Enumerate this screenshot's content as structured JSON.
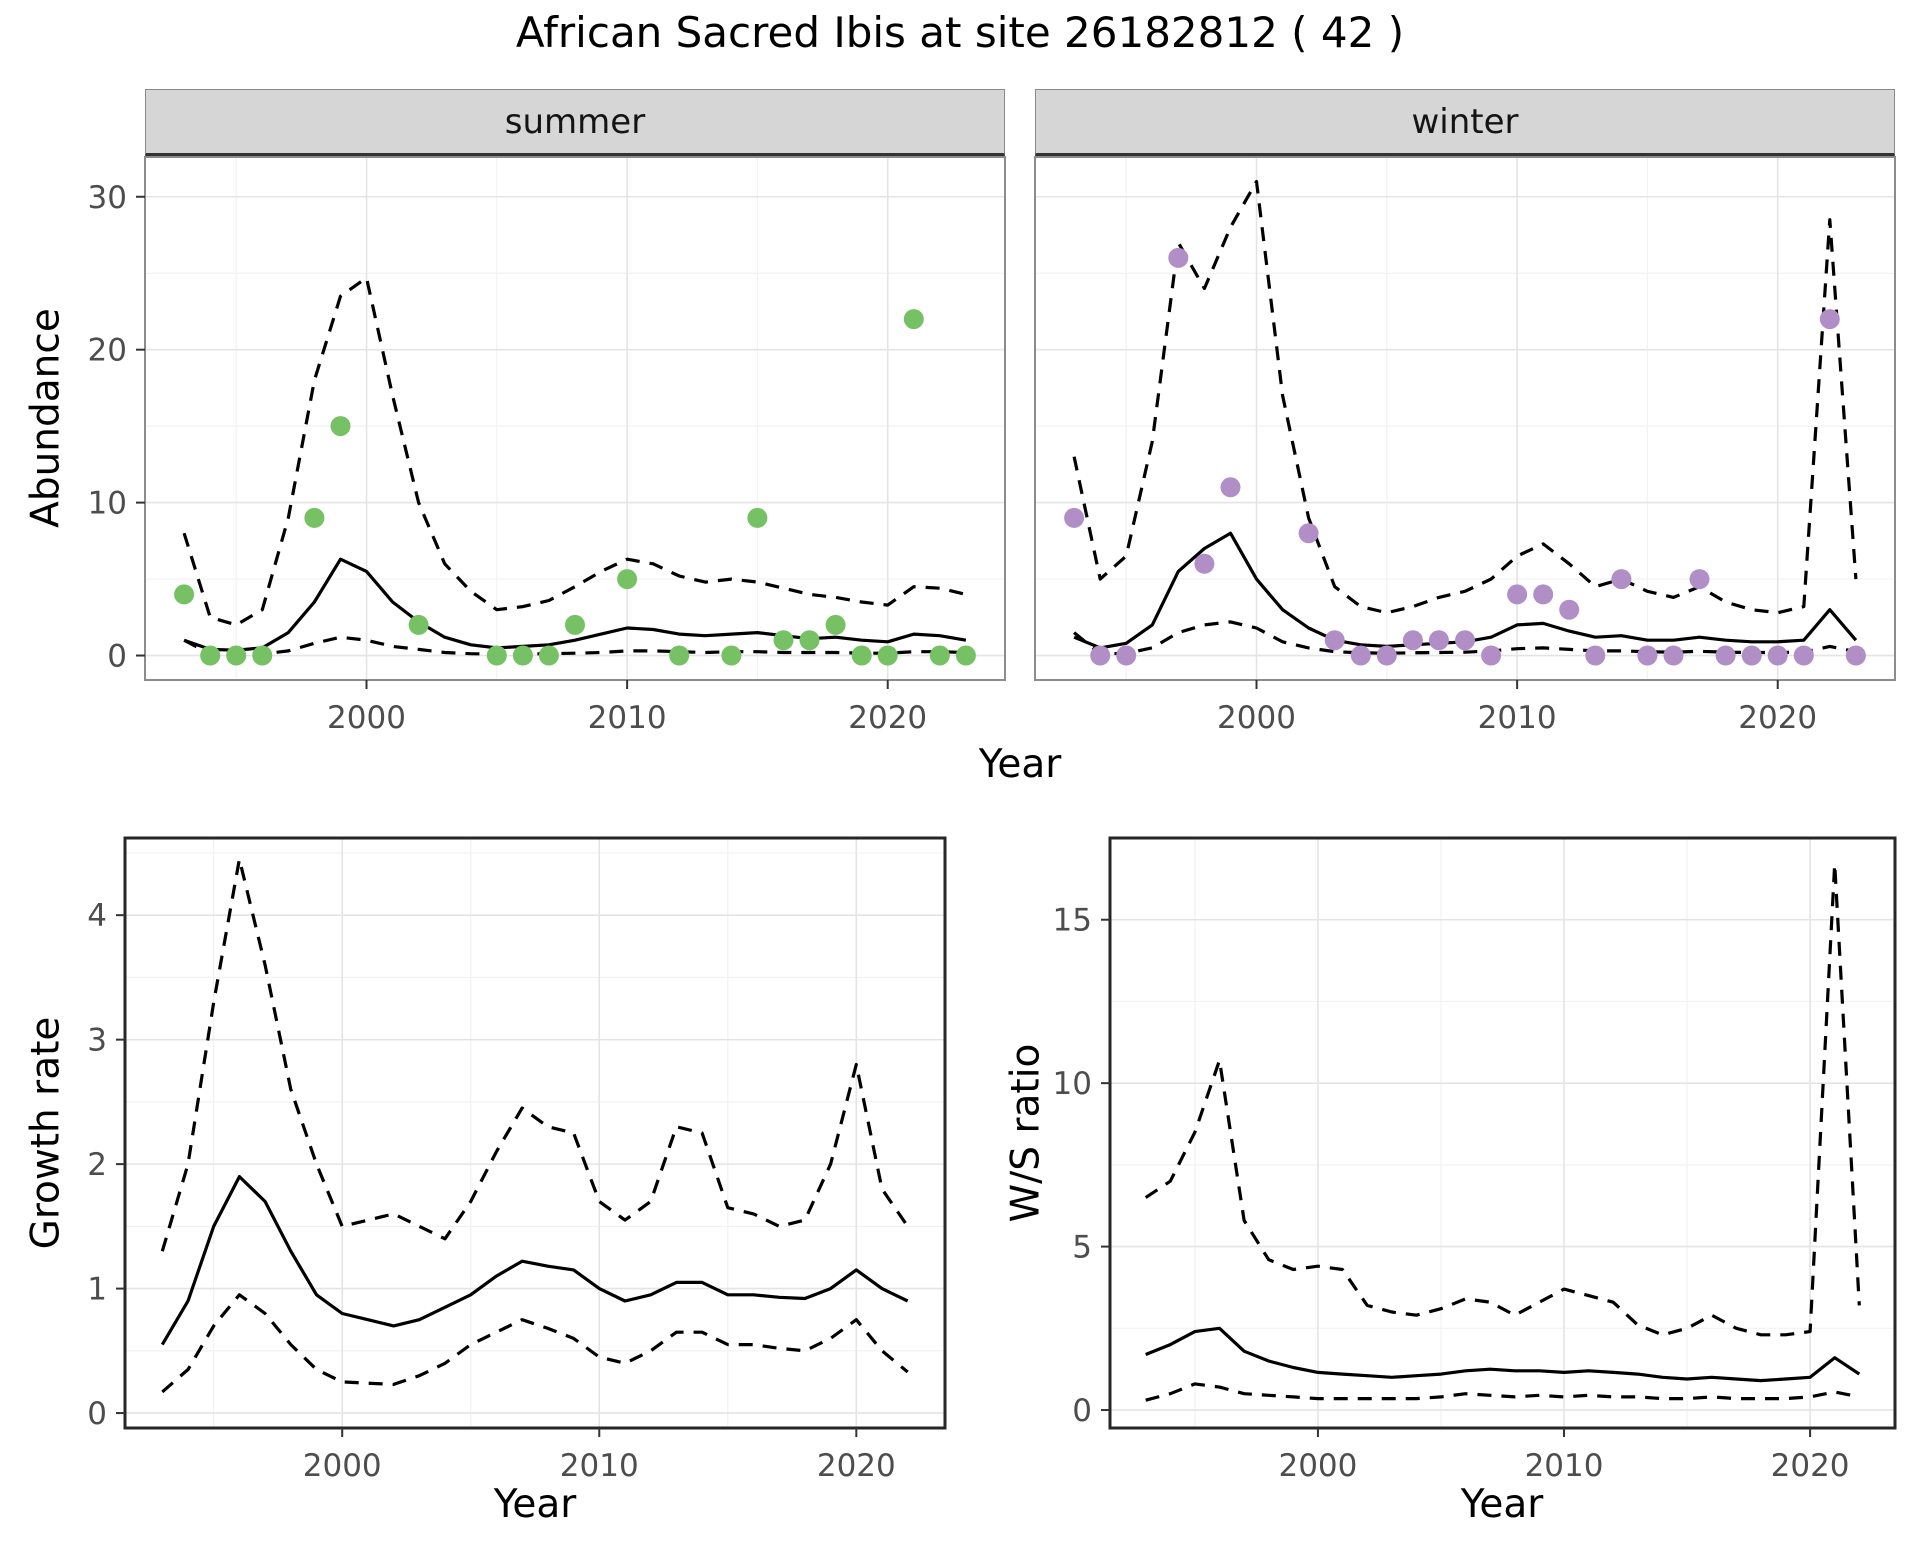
{
  "title": "African Sacred Ibis at site 26182812 ( 42 )",
  "chart_data": [
    {
      "id": "abundance",
      "type": "line",
      "xlabel": "Year",
      "ylabel": "Abundance",
      "xlim": [
        1991.5,
        2024.5
      ],
      "ylim": [
        -1.6,
        32.6
      ],
      "xticks": [
        2000,
        2010,
        2020
      ],
      "yticks": [
        0,
        10,
        20,
        30
      ],
      "x_minor": [
        1995,
        2005,
        2015
      ],
      "y_minor": [
        5,
        15,
        25
      ],
      "line_color": "#000000",
      "years": [
        1993,
        1994,
        1995,
        1996,
        1997,
        1998,
        1999,
        2000,
        2001,
        2002,
        2003,
        2004,
        2005,
        2006,
        2007,
        2008,
        2009,
        2010,
        2011,
        2012,
        2013,
        2014,
        2015,
        2016,
        2017,
        2018,
        2019,
        2020,
        2021,
        2022,
        2023
      ],
      "facets": [
        {
          "label": "summer",
          "point_color": "#76c163",
          "fit": [
            1.0,
            0.4,
            0.35,
            0.5,
            1.5,
            3.5,
            6.3,
            5.5,
            3.5,
            2.2,
            1.2,
            0.7,
            0.5,
            0.6,
            0.7,
            1.0,
            1.4,
            1.8,
            1.7,
            1.4,
            1.3,
            1.4,
            1.5,
            1.3,
            1.1,
            1.2,
            1.0,
            0.9,
            1.4,
            1.3,
            1.0
          ],
          "upper": [
            8.0,
            2.5,
            2.0,
            3.0,
            9.0,
            18.0,
            23.5,
            24.7,
            17.0,
            10.0,
            6.0,
            4.2,
            3.0,
            3.2,
            3.6,
            4.5,
            5.5,
            6.3,
            6.0,
            5.2,
            4.8,
            5.0,
            4.8,
            4.4,
            4.0,
            3.8,
            3.5,
            3.3,
            4.5,
            4.4,
            4.0
          ],
          "lower": [
            1.0,
            0.1,
            0.1,
            0.1,
            0.3,
            0.8,
            1.2,
            1.0,
            0.6,
            0.4,
            0.2,
            0.12,
            0.1,
            0.1,
            0.12,
            0.15,
            0.2,
            0.3,
            0.3,
            0.25,
            0.2,
            0.25,
            0.25,
            0.2,
            0.2,
            0.2,
            0.15,
            0.15,
            0.25,
            0.25,
            0.2
          ],
          "observed": {
            "x": [
              1993,
              1994,
              1995,
              1996,
              1998,
              1999,
              2002,
              2005,
              2006,
              2007,
              2008,
              2010,
              2012,
              2014,
              2015,
              2016,
              2017,
              2018,
              2019,
              2020,
              2021,
              2022,
              2023
            ],
            "y": [
              4,
              0,
              0,
              0,
              9,
              15,
              2,
              0,
              0,
              0,
              2,
              5,
              0,
              0,
              9,
              1,
              1,
              2,
              0,
              0,
              22,
              0,
              0
            ]
          }
        },
        {
          "label": "winter",
          "point_color": "#b18fc6",
          "fit": [
            1.2,
            0.5,
            0.8,
            2.0,
            5.5,
            7.0,
            8.0,
            5.0,
            3.0,
            1.8,
            1.0,
            0.7,
            0.6,
            0.7,
            0.8,
            0.9,
            1.2,
            2.0,
            2.1,
            1.6,
            1.2,
            1.3,
            1.0,
            1.0,
            1.2,
            1.0,
            0.9,
            0.9,
            1.0,
            3.0,
            1.0
          ],
          "upper": [
            13.0,
            5.0,
            6.5,
            14.0,
            27.0,
            24.0,
            28.0,
            31.0,
            17.0,
            9.0,
            4.5,
            3.2,
            2.8,
            3.2,
            3.8,
            4.2,
            5.0,
            6.5,
            7.3,
            6.0,
            4.5,
            5.0,
            4.2,
            3.8,
            4.5,
            3.5,
            3.0,
            2.8,
            3.2,
            28.5,
            5.0
          ],
          "lower": [
            1.5,
            0.1,
            0.15,
            0.5,
            1.5,
            2.0,
            2.2,
            1.8,
            0.9,
            0.5,
            0.25,
            0.18,
            0.15,
            0.18,
            0.2,
            0.22,
            0.3,
            0.45,
            0.5,
            0.4,
            0.3,
            0.3,
            0.25,
            0.22,
            0.28,
            0.22,
            0.2,
            0.2,
            0.22,
            0.6,
            0.25
          ],
          "observed": {
            "x": [
              1993,
              1994,
              1995,
              1997,
              1998,
              1999,
              2002,
              2003,
              2004,
              2005,
              2006,
              2007,
              2008,
              2009,
              2010,
              2011,
              2012,
              2013,
              2014,
              2015,
              2016,
              2017,
              2018,
              2019,
              2020,
              2021,
              2022,
              2023
            ],
            "y": [
              9,
              0,
              0,
              26,
              6,
              11,
              8,
              1,
              0,
              0,
              1,
              1,
              1,
              0,
              4,
              4,
              3,
              0,
              5,
              0,
              0,
              5,
              0,
              0,
              0,
              0,
              22,
              0
            ]
          }
        }
      ]
    },
    {
      "id": "growth_rate",
      "type": "line",
      "xlabel": "Year",
      "ylabel": "Growth rate",
      "xlim": [
        1991.55,
        2023.45
      ],
      "ylim": [
        -0.12,
        4.62
      ],
      "xticks": [
        2000,
        2010,
        2020
      ],
      "yticks": [
        0,
        1,
        2,
        3,
        4
      ],
      "x_minor": [
        1995,
        2005,
        2015
      ],
      "y_minor": [
        0.5,
        1.5,
        2.5,
        3.5,
        4.5
      ],
      "line_color": "#000000",
      "years": [
        1993,
        1994,
        1995,
        1996,
        1997,
        1998,
        1999,
        2000,
        2001,
        2002,
        2003,
        2004,
        2005,
        2006,
        2007,
        2008,
        2009,
        2010,
        2011,
        2012,
        2013,
        2014,
        2015,
        2016,
        2017,
        2018,
        2019,
        2020,
        2021,
        2022
      ],
      "fit": [
        0.55,
        0.9,
        1.5,
        1.9,
        1.7,
        1.3,
        0.95,
        0.8,
        0.75,
        0.7,
        0.75,
        0.85,
        0.95,
        1.1,
        1.22,
        1.18,
        1.15,
        1.0,
        0.9,
        0.95,
        1.05,
        1.05,
        0.95,
        0.95,
        0.93,
        0.92,
        1.0,
        1.15,
        1.0,
        0.9
      ],
      "upper": [
        1.3,
        2.0,
        3.3,
        4.45,
        3.6,
        2.6,
        2.0,
        1.5,
        1.55,
        1.6,
        1.5,
        1.4,
        1.7,
        2.1,
        2.45,
        2.3,
        2.25,
        1.7,
        1.55,
        1.7,
        2.3,
        2.25,
        1.65,
        1.6,
        1.5,
        1.55,
        2.0,
        2.8,
        1.8,
        1.5
      ],
      "lower": [
        0.17,
        0.35,
        0.7,
        0.95,
        0.8,
        0.55,
        0.35,
        0.25,
        0.24,
        0.23,
        0.3,
        0.4,
        0.55,
        0.65,
        0.75,
        0.68,
        0.6,
        0.45,
        0.4,
        0.5,
        0.65,
        0.65,
        0.55,
        0.55,
        0.52,
        0.5,
        0.6,
        0.75,
        0.5,
        0.33
      ]
    },
    {
      "id": "ws_ratio",
      "type": "line",
      "xlabel": "Year",
      "ylabel": "W/S ratio",
      "xlim": [
        1991.55,
        2023.45
      ],
      "ylim": [
        -0.55,
        17.5
      ],
      "xticks": [
        2000,
        2010,
        2020
      ],
      "yticks": [
        0,
        5,
        10,
        15
      ],
      "x_minor": [
        1995,
        2005,
        2015
      ],
      "y_minor": [
        2.5,
        7.5,
        12.5
      ],
      "line_color": "#000000",
      "years": [
        1993,
        1994,
        1995,
        1996,
        1997,
        1998,
        1999,
        2000,
        2001,
        2002,
        2003,
        2004,
        2005,
        2006,
        2007,
        2008,
        2009,
        2010,
        2011,
        2012,
        2013,
        2014,
        2015,
        2016,
        2017,
        2018,
        2019,
        2020,
        2021,
        2022
      ],
      "fit": [
        1.7,
        2.0,
        2.4,
        2.5,
        1.8,
        1.5,
        1.3,
        1.15,
        1.1,
        1.05,
        1.0,
        1.05,
        1.1,
        1.2,
        1.25,
        1.2,
        1.2,
        1.15,
        1.2,
        1.15,
        1.1,
        1.0,
        0.95,
        1.0,
        0.95,
        0.9,
        0.95,
        1.0,
        1.6,
        1.1
      ],
      "upper": [
        6.5,
        7.0,
        8.5,
        10.7,
        5.8,
        4.6,
        4.3,
        4.4,
        4.3,
        3.2,
        3.0,
        2.9,
        3.1,
        3.4,
        3.3,
        2.9,
        3.3,
        3.7,
        3.5,
        3.3,
        2.6,
        2.3,
        2.5,
        2.9,
        2.5,
        2.3,
        2.3,
        2.4,
        16.7,
        3.2
      ],
      "lower": [
        0.3,
        0.5,
        0.8,
        0.7,
        0.5,
        0.45,
        0.4,
        0.35,
        0.35,
        0.35,
        0.35,
        0.35,
        0.4,
        0.5,
        0.45,
        0.4,
        0.45,
        0.4,
        0.45,
        0.4,
        0.4,
        0.35,
        0.35,
        0.4,
        0.35,
        0.35,
        0.35,
        0.4,
        0.55,
        0.4
      ]
    }
  ]
}
